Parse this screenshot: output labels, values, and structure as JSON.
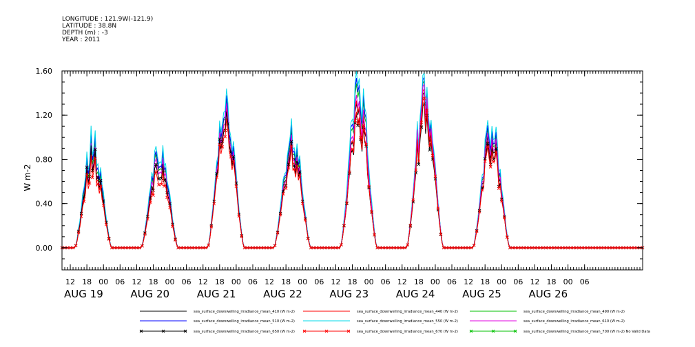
{
  "header": {
    "longitude": "LONGITUDE : 121.9W(-121.9)",
    "latitude": "LATITUDE : 38.8N",
    "depth": "DEPTH (m) : -3",
    "year": "YEAR : 2011"
  },
  "chart_data": {
    "type": "line",
    "title": "",
    "xlabel": "",
    "ylabel": "W m-2",
    "ylim": [
      -0.2,
      1.6
    ],
    "xlim_hours": [
      9,
      219
    ],
    "grid": false,
    "legend_position": "bottom",
    "y_ticks": [
      "1.60",
      "1.20",
      "0.80",
      "0.40",
      "0.00"
    ],
    "x_hour_ticks": [
      "12",
      "18",
      "00",
      "06",
      "12",
      "18",
      "00",
      "06",
      "12",
      "18",
      "00",
      "06",
      "12",
      "18",
      "00",
      "06",
      "12",
      "18",
      "00",
      "06",
      "12",
      "18",
      "00",
      "06",
      "12",
      "18",
      "00",
      "06",
      "12",
      "18",
      "00",
      "06"
    ],
    "x_date_labels": [
      "AUG 19",
      "AUG 20",
      "AUG 21",
      "AUG 22",
      "AUG 23",
      "AUG 24",
      "AUG 25",
      "AUG 26"
    ],
    "days": [
      "AUG 19",
      "AUG 20",
      "AUG 21",
      "AUG 22",
      "AUG 23",
      "AUG 24",
      "AUG 25"
    ],
    "daily_peak_by_series": {
      "sea_surface_downwelling_irradiance_mean_410 (W m-2)": [
        1.0,
        0.95,
        1.25,
        1.0,
        1.28,
        1.35,
        1.05
      ],
      "sea_surface_downwelling_irradiance_mean_440 (W m-2)": [
        0.85,
        0.82,
        1.2,
        0.95,
        1.3,
        1.38,
        1.0
      ],
      "sea_surface_downwelling_irradiance_mean_490 (W m-2)": [
        0.95,
        0.92,
        1.3,
        1.05,
        1.45,
        1.45,
        1.12
      ],
      "sea_surface_downwelling_irradiance_mean_510 (W m-2)": [
        1.0,
        0.95,
        1.32,
        1.08,
        1.5,
        1.48,
        1.15
      ],
      "sea_surface_downwelling_irradiance_mean_550 (W m-2)": [
        1.05,
        1.0,
        1.38,
        1.12,
        1.56,
        1.52,
        1.2
      ],
      "sea_surface_downwelling_irradiance_mean_610 (W m-2)": [
        0.9,
        0.88,
        1.25,
        0.98,
        1.35,
        1.42,
        1.08
      ],
      "sea_surface_downwelling_irradiance_mean_650 (W m-2)": [
        0.88,
        0.82,
        1.18,
        0.92,
        1.18,
        1.25,
        0.98
      ],
      "sea_surface_downwelling_irradiance_mean_670 (W m-2)": [
        0.8,
        0.75,
        1.12,
        0.88,
        1.2,
        1.3,
        0.95
      ],
      "sea_surface_downwelling_irradiance_mean_700 (W m-2) No Valid Data": []
    },
    "series": [
      {
        "name": "sea_surface_downwelling_irradiance_mean_410 (W m-2)",
        "color": "#000000",
        "marker": "none",
        "scale": 0.84,
        "valid": true
      },
      {
        "name": "sea_surface_downwelling_irradiance_mean_440 (W m-2)",
        "color": "#ff0000",
        "marker": "none",
        "scale": 0.82,
        "valid": true
      },
      {
        "name": "sea_surface_downwelling_irradiance_mean_490 (W m-2)",
        "color": "#00c000",
        "marker": "none",
        "scale": 0.92,
        "valid": true
      },
      {
        "name": "sea_surface_downwelling_irradiance_mean_510 (W m-2)",
        "color": "#0000ff",
        "marker": "none",
        "scale": 0.95,
        "valid": true
      },
      {
        "name": "sea_surface_downwelling_irradiance_mean_550 (W m-2)",
        "color": "#00d8e8",
        "marker": "none",
        "scale": 1.0,
        "valid": true
      },
      {
        "name": "sea_surface_downwelling_irradiance_mean_610 (W m-2)",
        "color": "#e000e0",
        "marker": "none",
        "scale": 0.87,
        "valid": true
      },
      {
        "name": "sea_surface_downwelling_irradiance_mean_650 (W m-2)",
        "color": "#000000",
        "marker": "x",
        "scale": 0.78,
        "valid": true
      },
      {
        "name": "sea_surface_downwelling_irradiance_mean_670 (W m-2)",
        "color": "#ff0000",
        "marker": "x",
        "scale": 0.8,
        "valid": true
      },
      {
        "name": "sea_surface_downwelling_irradiance_mean_700 (W m-2) No Valid Data",
        "color": "#00c000",
        "marker": "x",
        "scale": 0,
        "valid": false
      }
    ]
  }
}
